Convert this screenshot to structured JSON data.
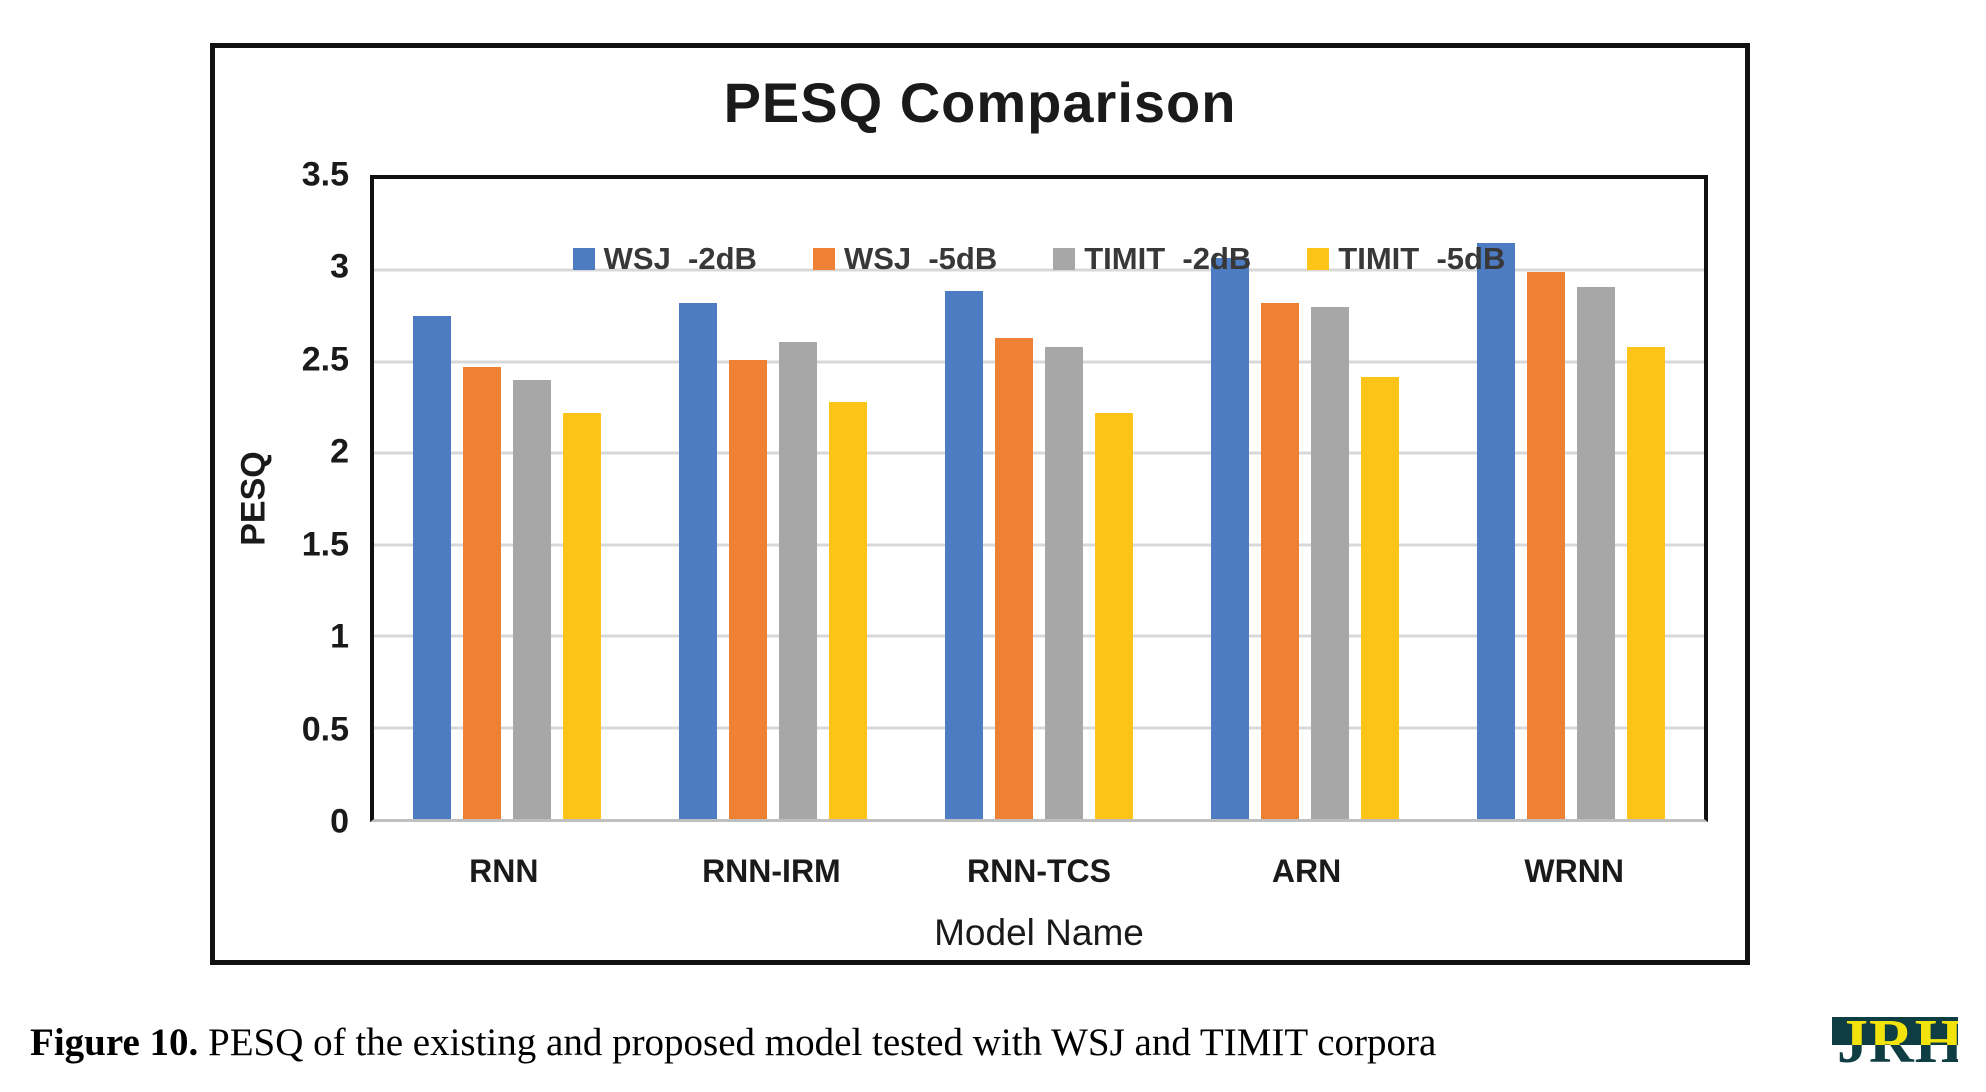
{
  "chart_data": {
    "type": "bar",
    "title": "PESQ Comparison",
    "xlabel": "Model Name",
    "ylabel": "PESQ",
    "ylim": [
      0,
      3.5
    ],
    "yticks": [
      0,
      0.5,
      1,
      1.5,
      2,
      2.5,
      3,
      3.5
    ],
    "ytick_labels": [
      "0",
      "0.5",
      "1",
      "1.5",
      "2",
      "2.5",
      "3",
      "3.5"
    ],
    "grid": true,
    "legend_position": "top-inside",
    "categories": [
      "RNN",
      "RNN-IRM",
      "RNN-TCS",
      "ARN",
      "WRNN"
    ],
    "series": [
      {
        "name": "WSJ  -2dB",
        "color": "#4E7CC3",
        "values": [
          2.75,
          2.82,
          2.89,
          3.07,
          3.15
        ]
      },
      {
        "name": "WSJ  -5dB",
        "color": "#EE8133",
        "values": [
          2.47,
          2.51,
          2.63,
          2.82,
          2.99
        ]
      },
      {
        "name": "TIMIT  -2dB",
        "color": "#A7A7A7",
        "values": [
          2.4,
          2.61,
          2.58,
          2.8,
          2.91
        ]
      },
      {
        "name": "TIMIT  -5dB",
        "color": "#FFC418",
        "values": [
          2.22,
          2.28,
          2.22,
          2.42,
          2.58
        ]
      }
    ]
  },
  "caption": {
    "label": "Figure 10.",
    "text": " PESQ of the existing and proposed model tested with WSJ and TIMIT corpora"
  },
  "logo": {
    "text": "JRH",
    "yellow": "#F2E30C",
    "teal": "#0E3E44"
  }
}
